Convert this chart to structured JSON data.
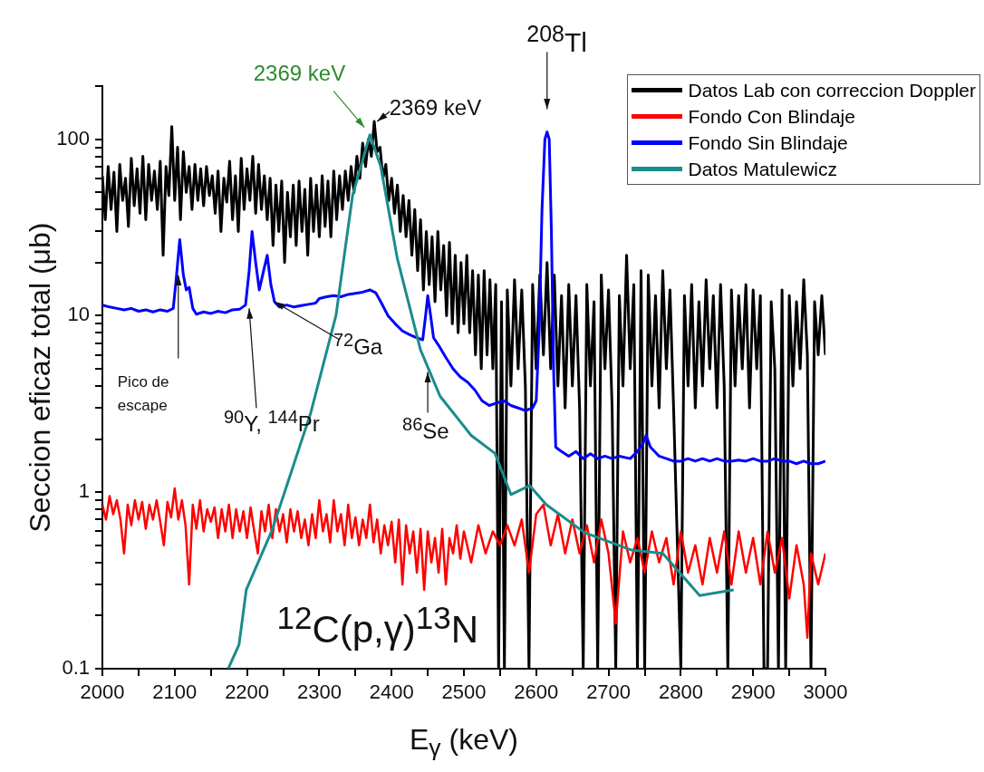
{
  "chart_data": {
    "type": "line",
    "xlabel": "E$_{γ}$ (keV)",
    "ylabel": "Seccion eficaz total (μb)",
    "log": "y",
    "grid": false,
    "legend": "top right",
    "marker": "none",
    "line_style": "solid",
    "xlim": [
      2000,
      3000
    ],
    "xticks": [
      2000,
      {
        "value": 2050,
        "label": null
      },
      2100,
      {
        "value": 2150,
        "label": null
      },
      2200,
      {
        "value": 2250,
        "label": null
      },
      2300,
      {
        "value": 2350,
        "label": null
      },
      2400,
      {
        "value": 2450,
        "label": null
      },
      2500,
      {
        "value": 2550,
        "label": null
      },
      2600,
      {
        "value": 2650,
        "label": null
      },
      2700,
      {
        "value": 2750,
        "label": null
      },
      2800,
      {
        "value": 2850,
        "label": null
      },
      2900,
      {
        "value": 2950,
        "label": null
      },
      3000
    ],
    "ylim": [
      0.1,
      200
    ],
    "yticks": [
      0.1,
      {
        "value": 0.2,
        "label": null
      },
      {
        "value": 0.3,
        "label": null
      },
      {
        "value": 0.4,
        "label": null
      },
      {
        "value": 0.5,
        "label": null
      },
      {
        "value": 0.6,
        "label": null
      },
      {
        "value": 0.7,
        "label": null
      },
      {
        "value": 0.8,
        "label": null
      },
      {
        "value": 0.9,
        "label": null
      },
      1,
      {
        "value": 2,
        "label": null
      },
      {
        "value": 3,
        "label": null
      },
      {
        "value": 4,
        "label": null
      },
      {
        "value": 5,
        "label": null
      },
      {
        "value": 6,
        "label": null
      },
      {
        "value": 7,
        "label": null
      },
      {
        "value": 8,
        "label": null
      },
      {
        "value": 9,
        "label": null
      },
      10,
      {
        "value": 20,
        "label": null
      },
      {
        "value": 30,
        "label": null
      },
      {
        "value": 40,
        "label": null
      },
      {
        "value": 50,
        "label": null
      },
      {
        "value": 60,
        "label": null
      },
      {
        "value": 70,
        "label": null
      },
      {
        "value": 80,
        "label": null
      },
      {
        "value": 90,
        "label": null
      },
      100,
      {
        "value": 200,
        "label": null
      }
    ],
    "series": [
      {
        "name": "Datos Lab con correccion Doppler",
        "color": "#000000",
        "x": [
          2000,
          2004,
          2008,
          2012,
          2016,
          2020,
          2024,
          2028,
          2032,
          2036,
          2040,
          2044,
          2048,
          2052,
          2056,
          2060,
          2064,
          2068,
          2072,
          2076,
          2080,
          2084,
          2088,
          2092,
          2096,
          2100,
          2104,
          2108,
          2112,
          2116,
          2120,
          2124,
          2128,
          2132,
          2136,
          2140,
          2144,
          2148,
          2152,
          2156,
          2160,
          2164,
          2168,
          2172,
          2176,
          2180,
          2184,
          2188,
          2192,
          2196,
          2200,
          2204,
          2208,
          2212,
          2216,
          2220,
          2224,
          2228,
          2232,
          2236,
          2240,
          2244,
          2248,
          2252,
          2256,
          2260,
          2264,
          2268,
          2272,
          2276,
          2280,
          2284,
          2288,
          2292,
          2296,
          2300,
          2304,
          2308,
          2312,
          2316,
          2320,
          2324,
          2328,
          2332,
          2336,
          2340,
          2344,
          2348,
          2352,
          2356,
          2360,
          2364,
          2368,
          2372,
          2376,
          2380,
          2384,
          2388,
          2392,
          2396,
          2400,
          2404,
          2408,
          2412,
          2416,
          2420,
          2424,
          2428,
          2432,
          2436,
          2440,
          2444,
          2448,
          2452,
          2456,
          2460,
          2464,
          2468,
          2472,
          2476,
          2480,
          2484,
          2488,
          2492,
          2496,
          2500,
          2504,
          2508,
          2512,
          2516,
          2520,
          2524,
          2528,
          2532,
          2536,
          2540,
          2544,
          2548,
          2552,
          2556,
          2560,
          2565,
          2570,
          2575,
          2580,
          2585,
          2590,
          2595,
          2600,
          2605,
          2610,
          2615,
          2620,
          2625,
          2630,
          2635,
          2640,
          2645,
          2650,
          2655,
          2660,
          2665,
          2670,
          2675,
          2680,
          2685,
          2690,
          2695,
          2700,
          2705,
          2710,
          2715,
          2720,
          2725,
          2730,
          2735,
          2740,
          2745,
          2750,
          2755,
          2760,
          2765,
          2770,
          2775,
          2780,
          2785,
          2790,
          2800,
          2805,
          2810,
          2815,
          2820,
          2825,
          2830,
          2835,
          2840,
          2845,
          2850,
          2855,
          2860,
          2865,
          2870,
          2875,
          2880,
          2885,
          2890,
          2895,
          2900,
          2905,
          2910,
          2915,
          2920,
          2925,
          2930,
          2935,
          2940,
          2945,
          2950,
          2955,
          2960,
          2965,
          2970,
          2975,
          2980,
          2985,
          2990,
          2995,
          3000
        ],
        "values": [
          62,
          35,
          70,
          40,
          65,
          30,
          72,
          45,
          60,
          32,
          78,
          42,
          68,
          38,
          80,
          35,
          72,
          45,
          66,
          40,
          75,
          22,
          70,
          48,
          118,
          45,
          90,
          35,
          85,
          50,
          70,
          40,
          72,
          45,
          68,
          42,
          70,
          48,
          62,
          38,
          66,
          30,
          60,
          44,
          75,
          35,
          62,
          30,
          78,
          40,
          68,
          45,
          80,
          38,
          72,
          40,
          62,
          35,
          60,
          25,
          55,
          30,
          58,
          20,
          50,
          28,
          55,
          25,
          58,
          30,
          52,
          22,
          60,
          30,
          55,
          28,
          62,
          32,
          58,
          28,
          66,
          35,
          62,
          40,
          66,
          45,
          70,
          50,
          80,
          60,
          95,
          70,
          100,
          80,
          126,
          85,
          90,
          60,
          72,
          45,
          60,
          38,
          55,
          30,
          48,
          28,
          45,
          22,
          40,
          18,
          35,
          14,
          30,
          15,
          28,
          12,
          30,
          14,
          25,
          10,
          26,
          9,
          22,
          8,
          20,
          9,
          22,
          8,
          18,
          6,
          17,
          5,
          18,
          6,
          16,
          5,
          15,
          0.1,
          12,
          0.1,
          14,
          4,
          16,
          5,
          14,
          4,
          0.1,
          15,
          5,
          17,
          6,
          20,
          5,
          17,
          4,
          13,
          3,
          15,
          4,
          13,
          3,
          0.1,
          15,
          4,
          12,
          0.1,
          17,
          5,
          14,
          3,
          0.1,
          13,
          4,
          22,
          5,
          15,
          0.1,
          18,
          0.1,
          17,
          4,
          13,
          3,
          18,
          5,
          14,
          3,
          0.1,
          13,
          4,
          15,
          3,
          12,
          4,
          16,
          5,
          13,
          3,
          15,
          4,
          0.1,
          14,
          4,
          13,
          5,
          15,
          3,
          14,
          5,
          13,
          0.1,
          0.1,
          12,
          5,
          0.1,
          14,
          0.1,
          13,
          4,
          12,
          5,
          16,
          6,
          0.1,
          12,
          6,
          13,
          6
        ]
      },
      {
        "name": "Fondo Con Blindaje",
        "color": "#ff0000",
        "x": [
          2000,
          2005,
          2010,
          2015,
          2020,
          2025,
          2030,
          2035,
          2040,
          2045,
          2050,
          2055,
          2060,
          2065,
          2070,
          2075,
          2080,
          2085,
          2090,
          2095,
          2100,
          2105,
          2110,
          2115,
          2120,
          2125,
          2130,
          2135,
          2140,
          2145,
          2150,
          2155,
          2160,
          2165,
          2170,
          2175,
          2180,
          2185,
          2190,
          2195,
          2200,
          2205,
          2210,
          2215,
          2220,
          2225,
          2230,
          2235,
          2240,
          2245,
          2250,
          2255,
          2260,
          2265,
          2270,
          2275,
          2280,
          2285,
          2290,
          2295,
          2300,
          2305,
          2310,
          2315,
          2320,
          2325,
          2330,
          2335,
          2340,
          2345,
          2350,
          2355,
          2360,
          2365,
          2370,
          2375,
          2380,
          2385,
          2390,
          2395,
          2400,
          2405,
          2410,
          2415,
          2420,
          2425,
          2430,
          2435,
          2440,
          2445,
          2450,
          2455,
          2460,
          2465,
          2470,
          2475,
          2480,
          2485,
          2490,
          2495,
          2500,
          2510,
          2520,
          2530,
          2540,
          2550,
          2560,
          2570,
          2580,
          2590,
          2600,
          2610,
          2620,
          2630,
          2640,
          2650,
          2660,
          2670,
          2680,
          2690,
          2700,
          2710,
          2720,
          2730,
          2740,
          2750,
          2760,
          2770,
          2780,
          2790,
          2800,
          2810,
          2820,
          2830,
          2840,
          2850,
          2860,
          2870,
          2880,
          2890,
          2900,
          2910,
          2920,
          2930,
          2940,
          2950,
          2960,
          2970,
          2975,
          2980,
          2990,
          3000
        ],
        "values": [
          0.85,
          0.7,
          0.95,
          0.75,
          0.9,
          0.7,
          0.45,
          0.85,
          0.65,
          0.9,
          0.7,
          0.88,
          0.62,
          0.85,
          0.7,
          0.9,
          0.68,
          0.5,
          0.88,
          0.72,
          1.05,
          0.7,
          0.9,
          0.65,
          0.3,
          0.85,
          0.62,
          0.9,
          0.6,
          0.8,
          0.68,
          0.82,
          0.55,
          0.8,
          0.6,
          0.85,
          0.55,
          0.8,
          0.6,
          0.78,
          0.55,
          0.82,
          0.6,
          0.45,
          0.78,
          0.6,
          0.85,
          0.55,
          0.8,
          0.6,
          0.75,
          0.52,
          0.8,
          0.6,
          0.78,
          0.55,
          0.7,
          0.5,
          0.75,
          0.55,
          0.9,
          0.6,
          0.75,
          0.52,
          0.9,
          0.6,
          0.75,
          0.5,
          0.85,
          0.55,
          0.72,
          0.5,
          0.7,
          0.55,
          0.85,
          0.52,
          0.7,
          0.45,
          0.65,
          0.5,
          0.68,
          0.4,
          0.7,
          0.3,
          0.65,
          0.45,
          0.6,
          0.35,
          0.62,
          0.28,
          0.6,
          0.4,
          0.55,
          0.35,
          0.62,
          0.3,
          0.55,
          0.45,
          0.65,
          0.42,
          0.6,
          0.4,
          0.65,
          0.45,
          0.6,
          0.5,
          0.65,
          0.5,
          0.7,
          0.35,
          0.75,
          0.85,
          0.5,
          0.75,
          0.45,
          0.7,
          0.45,
          0.65,
          0.4,
          0.7,
          0.45,
          0.18,
          0.6,
          0.4,
          0.55,
          0.35,
          0.6,
          0.4,
          0.55,
          0.3,
          0.6,
          0.35,
          0.5,
          0.3,
          0.55,
          0.35,
          0.6,
          0.3,
          0.6,
          0.35,
          0.55,
          0.3,
          0.6,
          0.35,
          0.55,
          0.25,
          0.5,
          0.3,
          0.15,
          0.45,
          0.3,
          0.45
        ]
      },
      {
        "name": "Fondo Sin Blindaje",
        "color": "#0000ff",
        "x": [
          2000,
          2010,
          2020,
          2030,
          2040,
          2050,
          2060,
          2070,
          2080,
          2090,
          2098,
          2102,
          2107,
          2112,
          2116,
          2120,
          2125,
          2130,
          2140,
          2150,
          2160,
          2170,
          2180,
          2190,
          2198,
          2203,
          2207,
          2212,
          2217,
          2223,
          2228,
          2233,
          2238,
          2245,
          2255,
          2265,
          2275,
          2285,
          2295,
          2300,
          2310,
          2320,
          2330,
          2340,
          2350,
          2360,
          2370,
          2378,
          2385,
          2395,
          2405,
          2415,
          2425,
          2435,
          2443,
          2447,
          2450,
          2454,
          2458,
          2465,
          2475,
          2485,
          2495,
          2505,
          2515,
          2525,
          2535,
          2545,
          2555,
          2565,
          2575,
          2585,
          2595,
          2600,
          2604,
          2608,
          2612,
          2615,
          2618,
          2621,
          2624,
          2627,
          2635,
          2645,
          2655,
          2665,
          2675,
          2685,
          2695,
          2705,
          2715,
          2730,
          2740,
          2748,
          2752,
          2758,
          2770,
          2780,
          2790,
          2800,
          2810,
          2820,
          2830,
          2840,
          2850,
          2860,
          2870,
          2880,
          2890,
          2900,
          2910,
          2920,
          2930,
          2940,
          2950,
          2960,
          2970,
          2980,
          2990,
          3000
        ],
        "values": [
          11.5,
          11.2,
          11,
          10.8,
          11,
          10.6,
          10.8,
          10.5,
          10.8,
          10.6,
          11,
          16,
          27,
          17,
          14,
          14.5,
          11,
          10.2,
          10.5,
          10.3,
          10.6,
          10.4,
          10.8,
          10.9,
          11.5,
          18,
          30,
          20,
          14,
          18,
          22,
          15,
          12,
          11.2,
          11.5,
          11.2,
          11.4,
          11.6,
          11.8,
          12.5,
          12.8,
          13,
          12.8,
          13.2,
          13.4,
          13.6,
          14,
          13.5,
          12,
          10,
          9,
          8.2,
          7.8,
          7.5,
          7.3,
          10,
          13,
          10,
          7.5,
          6.8,
          5.8,
          5,
          4.5,
          4.2,
          3.8,
          3.3,
          3.1,
          3.2,
          3.3,
          3.1,
          3,
          2.9,
          3,
          3.3,
          8,
          40,
          100,
          110,
          100,
          30,
          5,
          1.8,
          1.7,
          1.6,
          1.7,
          1.55,
          1.65,
          1.55,
          1.6,
          1.55,
          1.6,
          1.55,
          1.7,
          1.9,
          2.1,
          1.8,
          1.6,
          1.55,
          1.5,
          1.5,
          1.55,
          1.5,
          1.55,
          1.5,
          1.55,
          1.5,
          1.5,
          1.52,
          1.5,
          1.55,
          1.5,
          1.5,
          1.55,
          1.5,
          1.5,
          1.45,
          1.5,
          1.45,
          1.45,
          1.5
        ]
      },
      {
        "name": "Datos Matulewicz",
        "color": "#1a8c8c",
        "x": [
          2174,
          2189,
          2199,
          2234,
          2252,
          2288,
          2323,
          2346,
          2370,
          2385,
          2408,
          2440,
          2467,
          2510,
          2543,
          2565,
          2591,
          2614,
          2667,
          2732,
          2775,
          2826,
          2873
        ],
        "values": [
          0.1,
          0.137,
          0.28,
          0.6,
          1.0,
          2.8,
          10,
          48,
          106,
          70,
          21,
          6.4,
          3.5,
          2.1,
          1.66,
          0.97,
          1.09,
          0.85,
          0.59,
          0.47,
          0.45,
          0.26,
          0.28
        ]
      }
    ],
    "annotations": [
      {
        "text": "2369 keV",
        "x": 2370,
        "y": 106
      },
      {
        "text": "2369 keV",
        "x": 2380,
        "y": 126
      },
      {
        "text": "$^{208}$Tl",
        "x": 2615,
        "y": 110
      },
      {
        "text": "Pico de escape",
        "x": 2105,
        "y": 17
      },
      {
        "text": "$^{90}$Y, $^{144}$Pr",
        "x": 2203,
        "y": 11
      },
      {
        "text": "$^{72}$Ga",
        "x": 2238,
        "y": 12
      },
      {
        "text": "$^{86}$Se",
        "x": 2450,
        "y": 4.8
      },
      "$^{12}$C(p,γ)$^{13}$N"
    ]
  }
}
